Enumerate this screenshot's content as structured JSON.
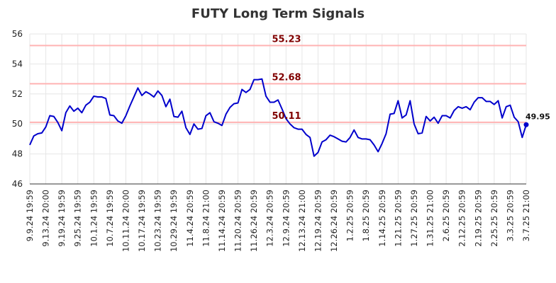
{
  "chart_data": {
    "type": "line",
    "title": "FUTY Long Term Signals",
    "xlabel": "",
    "ylabel": "",
    "ylim": [
      46,
      56
    ],
    "yticks": [
      "46",
      "48",
      "50",
      "52",
      "54",
      "56"
    ],
    "grid": true,
    "x_tick_labels": [
      "9.9.24 19:59",
      "9.13.24 20:00",
      "9.19.24 19:59",
      "9.25.24 19:59",
      "10.1.24 19:59",
      "10.7.24 19:59",
      "10.11.24 20:00",
      "10.17.24 19:59",
      "10.23.24 19:59",
      "10.29.24 19:59",
      "11.4.24 20:59",
      "11.8.24 21:00",
      "11.14.24 20:59",
      "11.20.24 20:59",
      "11.26.24 20:59",
      "12.3.24 20:59",
      "12.9.24 20:59",
      "12.13.24 21:00",
      "12.19.24 20:59",
      "12.26.24 20:59",
      "1.2.25 20:59",
      "1.8.25 20:59",
      "1.14.25 20:59",
      "1.21.25 20:59",
      "1.27.25 20:59",
      "1.31.25 21:00",
      "2.6.25 20:59",
      "2.12.25 20:59",
      "2.19.25 20:59",
      "2.25.25 20:59",
      "3.3.25 20:59",
      "3.7.25 21:00"
    ],
    "levels": [
      {
        "value": 55.23,
        "label": "55.23"
      },
      {
        "value": 52.68,
        "label": "52.68"
      },
      {
        "value": 50.11,
        "label": "50.11"
      }
    ],
    "last_value_label": "49.95",
    "series": [
      {
        "values": [
          48.6,
          49.2,
          49.35,
          49.4,
          49.8,
          50.55,
          50.5,
          50.1,
          49.55,
          50.75,
          51.2,
          50.85,
          51.05,
          50.75,
          51.25,
          51.45,
          51.85,
          51.8,
          51.8,
          51.7,
          50.6,
          50.55,
          50.2,
          50.05,
          50.55,
          51.2,
          51.8,
          52.4,
          51.9,
          52.15,
          52.0,
          51.8,
          52.2,
          51.9,
          51.15,
          51.65,
          50.5,
          50.45,
          50.85,
          49.75,
          49.3,
          50.0,
          49.65,
          49.7,
          50.55,
          50.75,
          50.15,
          50.05,
          49.9,
          50.65,
          51.1,
          51.35,
          51.4,
          52.3,
          52.1,
          52.3,
          52.95,
          52.95,
          53.0,
          51.85,
          51.45,
          51.45,
          51.6,
          51.0,
          50.35,
          50.0,
          49.75,
          49.65,
          49.65,
          49.3,
          49.1,
          47.85,
          48.1,
          48.8,
          48.95,
          49.25,
          49.15,
          49.0,
          48.85,
          48.8,
          49.1,
          49.6,
          49.1,
          49.0,
          49.0,
          48.95,
          48.6,
          48.15,
          48.7,
          49.35,
          50.65,
          50.7,
          51.55,
          50.4,
          50.6,
          51.55,
          50.0,
          49.35,
          49.4,
          50.5,
          50.2,
          50.45,
          50.05,
          50.55,
          50.55,
          50.4,
          50.9,
          51.15,
          51.05,
          51.15,
          50.95,
          51.45,
          51.75,
          51.75,
          51.5,
          51.5,
          51.3,
          51.55,
          50.4,
          51.15,
          51.25,
          50.45,
          50.15,
          49.1,
          49.95
        ]
      }
    ],
    "colors": {
      "line": "#0000cc",
      "level_line": "#ffb3b3",
      "level_text": "#800000",
      "grid": "#e6e6e6",
      "last_point": "#0000cc"
    }
  }
}
